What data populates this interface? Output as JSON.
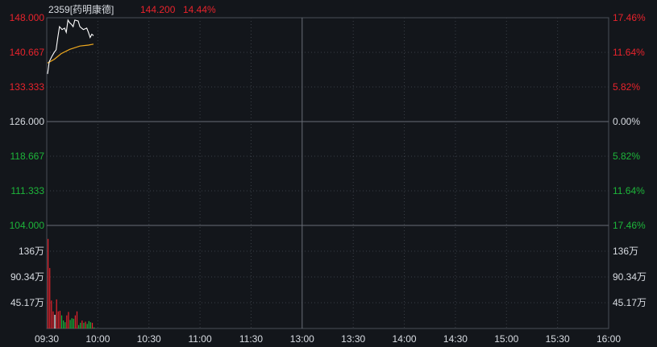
{
  "header": {
    "code_name": "2359[药明康德]",
    "price": "144.200",
    "change_pct": "14.44%"
  },
  "colors": {
    "background": "#13161b",
    "up": "#e8232c",
    "down": "#1db53a",
    "neutral": "#d8dce2",
    "price_line": "#ffffff",
    "avg_line": "#f0a91e",
    "grid": "#3a3f47"
  },
  "chart_data": {
    "type": "line",
    "title": "2359[药明康德]",
    "price_axis": {
      "ylim": [
        104,
        148
      ],
      "ticks": [
        "148.000",
        "140.667",
        "133.333",
        "126.000",
        "118.667",
        "111.333",
        "104.000"
      ],
      "base": 126
    },
    "pct_axis": {
      "ticks": [
        "17.46%",
        "11.64%",
        "5.82%",
        "0.00%",
        "5.82%",
        "11.64%",
        "17.46%"
      ]
    },
    "volume_axis": {
      "ylim": [
        0,
        180.68
      ],
      "ticks": [
        "136万",
        "90.34万",
        "45.17万"
      ],
      "unit": "万"
    },
    "time_ticks": [
      "09:30",
      "10:00",
      "10:30",
      "11:00",
      "11:30",
      "13:00",
      "13:30",
      "14:00",
      "14:30",
      "15:00",
      "15:30",
      "16:00"
    ],
    "grid": true,
    "price_series": [
      [
        0,
        136.1
      ],
      [
        1,
        138.7
      ],
      [
        2.5,
        139.8
      ],
      [
        4,
        140.7
      ],
      [
        5,
        141.2
      ],
      [
        6,
        143.8
      ],
      [
        7,
        146.1
      ],
      [
        8.5,
        145.5
      ],
      [
        10,
        145.8
      ],
      [
        11,
        144.9
      ],
      [
        12,
        147.5
      ],
      [
        13,
        146.9
      ],
      [
        14,
        146.6
      ],
      [
        15,
        146.1
      ],
      [
        16,
        147.5
      ],
      [
        18,
        147.3
      ],
      [
        19,
        146.1
      ],
      [
        20,
        145.8
      ],
      [
        21,
        145.5
      ],
      [
        23,
        145.8
      ],
      [
        24,
        144.9
      ],
      [
        25,
        143.8
      ],
      [
        26,
        144.5
      ],
      [
        27,
        144.2
      ]
    ],
    "avg_series": [
      [
        0,
        138.4
      ],
      [
        4,
        139.2
      ],
      [
        8,
        140.4
      ],
      [
        13,
        141.3
      ],
      [
        19,
        142.0
      ],
      [
        24,
        142.2
      ],
      [
        27,
        142.4
      ]
    ],
    "volume": [
      {
        "v": 157,
        "c": "up"
      },
      {
        "v": 106,
        "c": "up"
      },
      {
        "v": 49,
        "c": "up"
      },
      {
        "v": 30,
        "c": "up"
      },
      {
        "v": 24,
        "c": "flat"
      },
      {
        "v": 51,
        "c": "up"
      },
      {
        "v": 30,
        "c": "up"
      },
      {
        "v": 31,
        "c": "up"
      },
      {
        "v": 23,
        "c": "down"
      },
      {
        "v": 14,
        "c": "down"
      },
      {
        "v": 11,
        "c": "down"
      },
      {
        "v": 23,
        "c": "up"
      },
      {
        "v": 29,
        "c": "up"
      },
      {
        "v": 15,
        "c": "down"
      },
      {
        "v": 18,
        "c": "down"
      },
      {
        "v": 17,
        "c": "down"
      },
      {
        "v": 23,
        "c": "up"
      },
      {
        "v": 30,
        "c": "up"
      },
      {
        "v": 6,
        "c": "down"
      },
      {
        "v": 10,
        "c": "down"
      },
      {
        "v": 14,
        "c": "up"
      },
      {
        "v": 10,
        "c": "down"
      },
      {
        "v": 12,
        "c": "up"
      },
      {
        "v": 8,
        "c": "down"
      },
      {
        "v": 13,
        "c": "down"
      },
      {
        "v": 11,
        "c": "down"
      },
      {
        "v": 10,
        "c": "up"
      },
      {
        "v": 2,
        "c": "down"
      }
    ]
  }
}
